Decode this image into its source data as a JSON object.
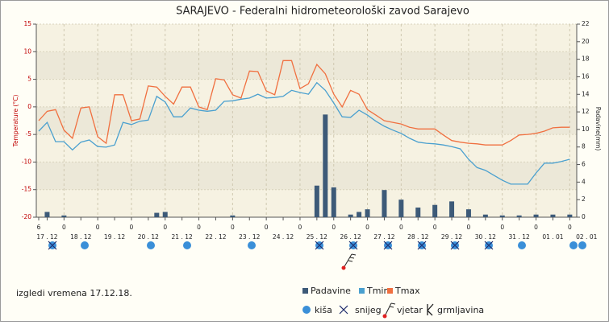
{
  "chart_data": {
    "type": "combo",
    "title": "SARAJEVO - Federalni hidrometeorološki zavod Sarajevo",
    "ylabel": "Temperature (°C)",
    "y2label": "Padavine(mm)",
    "note": "izgledi vremena 17.12.18.",
    "symbol_legend": [
      "kiša",
      "snijeg",
      "vjetar",
      "grmljavina"
    ],
    "categories": [
      "6",
      "17 . 12",
      null,
      "0",
      null,
      "18 . 12",
      null,
      "0",
      null,
      "19 . 12",
      null,
      "0",
      null,
      "20 . 12",
      null,
      "0",
      null,
      "21 . 12",
      null,
      "0",
      null,
      "22 . 12",
      null,
      "0",
      null,
      "23 . 12",
      null,
      "0",
      null,
      "24 . 12",
      null,
      "0",
      null,
      "25 . 12",
      null,
      "0",
      null,
      "26 . 12",
      null,
      "0",
      null,
      "27 . 12",
      null,
      "0",
      null,
      "28 . 12",
      null,
      "0",
      null,
      "29 . 12",
      null,
      "0",
      null,
      "30 . 12",
      null,
      "0",
      null,
      "31 . 12",
      null,
      "0",
      null,
      "01 . 01",
      null,
      "0",
      null,
      "02 . 01"
    ],
    "ylim": [
      -20,
      15
    ],
    "yticks": [
      -20,
      -15,
      -10,
      -5,
      0,
      5,
      10,
      15
    ],
    "y2lim": [
      0,
      22
    ],
    "y2ticks": [
      0,
      2,
      4,
      6,
      8,
      10,
      12,
      14,
      16,
      18,
      20,
      22
    ],
    "grid": true,
    "series": [
      {
        "name": "Padavine",
        "type": "bar",
        "axis": "y2",
        "color": "#3d5a78",
        "values": [
          0,
          0.6,
          0,
          0.2,
          0,
          0,
          0,
          0,
          0,
          0,
          0,
          0,
          0,
          0,
          0.5,
          0.6,
          0,
          0,
          0,
          0,
          0,
          0,
          0,
          0.2,
          0,
          0,
          0,
          0,
          0,
          0,
          0,
          0,
          0,
          3.6,
          11.7,
          3.4,
          0,
          0.3,
          0.6,
          0.9,
          0,
          3.1,
          0,
          2.0,
          0,
          1.1,
          0,
          1.4,
          0,
          1.8,
          0,
          0.9,
          0,
          0.3,
          0,
          0.2,
          0,
          0.2,
          0,
          0.3,
          0,
          0.3,
          0,
          0.3,
          null,
          null
        ]
      },
      {
        "name": "Tmin",
        "type": "line",
        "color": "#4aa0cf",
        "values": [
          -4.4,
          -2.8,
          -6.3,
          -6.3,
          -7.8,
          -6.4,
          -6.0,
          -7.2,
          -7.3,
          -6.9,
          -2.8,
          -3.2,
          -2.6,
          -2.4,
          1.9,
          0.9,
          -1.8,
          -1.8,
          -0.2,
          -0.6,
          -0.8,
          -0.6,
          1.0,
          1.1,
          1.4,
          1.6,
          2.3,
          1.6,
          1.7,
          1.9,
          3.0,
          2.6,
          2.3,
          4.4,
          3.0,
          0.7,
          -1.8,
          -1.9,
          -0.6,
          -1.5,
          -2.6,
          -3.5,
          -4.2,
          -4.8,
          -5.7,
          -6.4,
          -6.6,
          -6.7,
          -6.9,
          -7.2,
          -7.6,
          -9.5,
          -11.0,
          -11.5,
          -12.4,
          -13.3,
          -14.0,
          -14.0,
          -14.0,
          -12.0,
          -10.2,
          -10.2,
          -9.9,
          -9.5,
          null,
          null
        ]
      },
      {
        "name": "Tmax",
        "type": "line",
        "color": "#f07040",
        "values": [
          -2.5,
          -0.8,
          -0.5,
          -4.2,
          -5.7,
          -0.2,
          0,
          -5.4,
          -6.6,
          2.2,
          2.2,
          -2.5,
          -2.2,
          3.8,
          3.6,
          1.9,
          0.5,
          3.6,
          3.6,
          0,
          -0.5,
          5.1,
          4.9,
          2.2,
          1.6,
          6.5,
          6.4,
          2.9,
          2.2,
          8.4,
          8.4,
          3.3,
          4.2,
          7.7,
          6.0,
          2.3,
          0,
          3.0,
          2.3,
          -0.5,
          -1.5,
          -2.5,
          -2.8,
          -3.1,
          -3.7,
          -4.0,
          -4.0,
          -4.0,
          -5.1,
          -6.1,
          -6.4,
          -6.6,
          -6.7,
          -6.9,
          -6.9,
          -6.9,
          -6.1,
          -5.1,
          -5.0,
          -4.8,
          -4.4,
          -3.8,
          -3.7,
          -3.7,
          null,
          null
        ]
      }
    ]
  }
}
